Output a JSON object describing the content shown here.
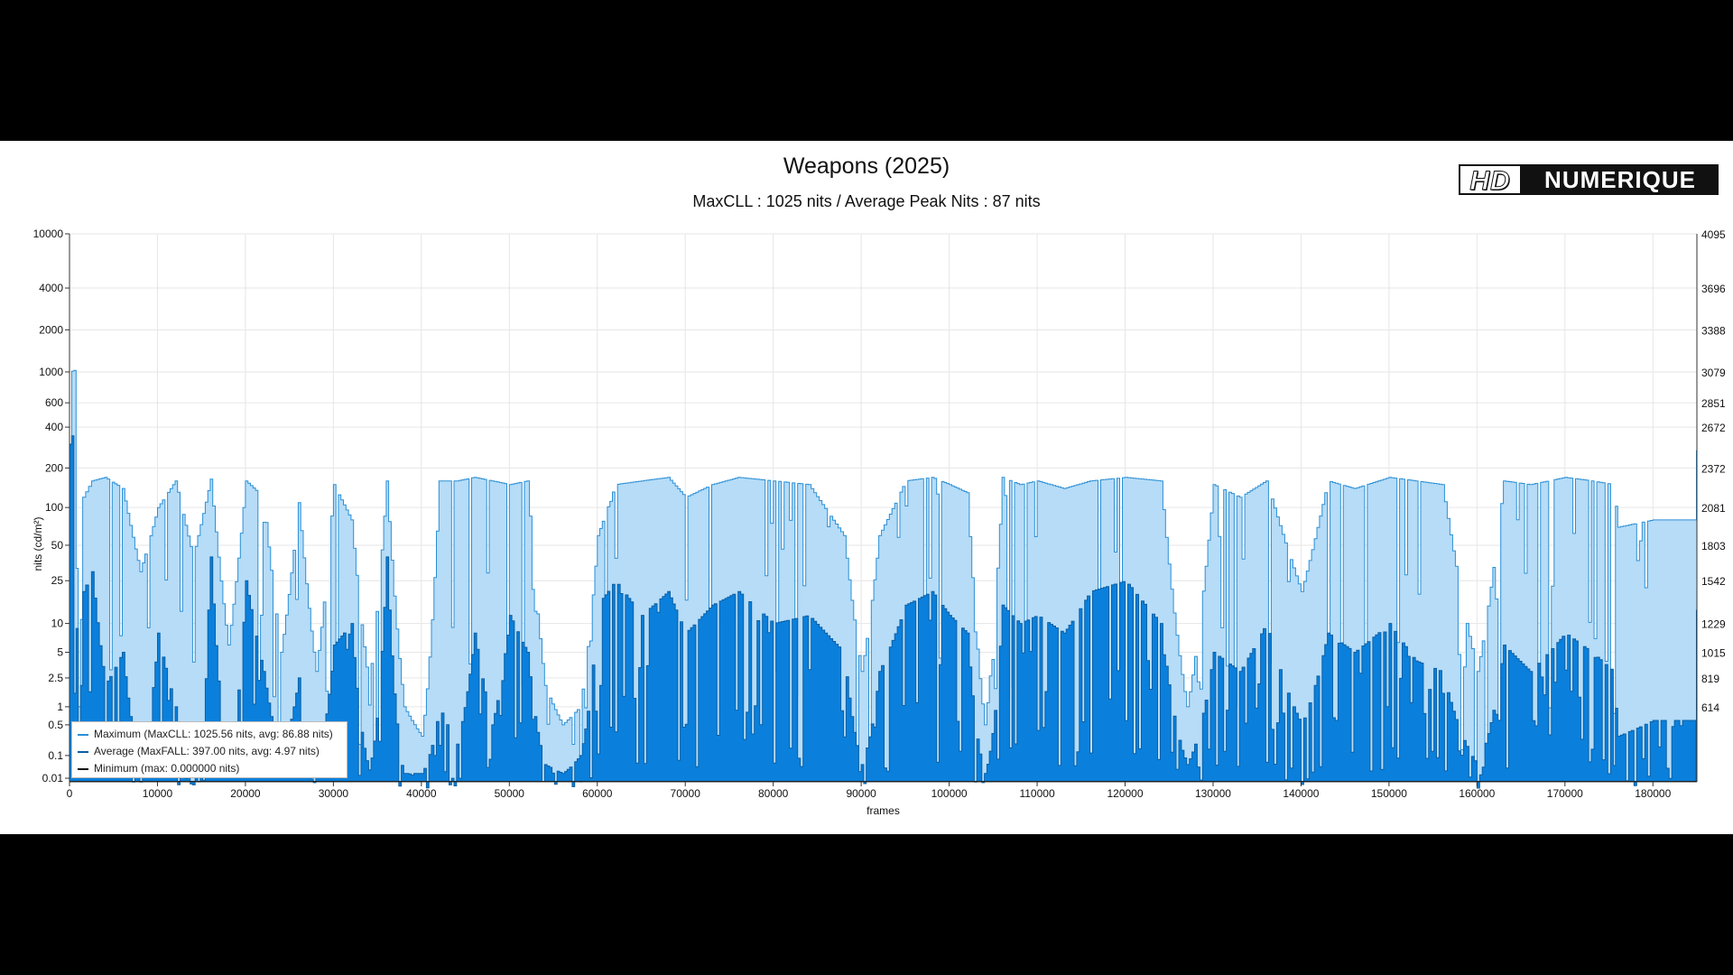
{
  "chart_data": {
    "type": "area",
    "title": "Weapons (2025)",
    "subtitle": "MaxCLL : 1025 nits / Average Peak Nits : 87 nits",
    "xlabel": "frames",
    "ylabel": "nits (cd/m²)",
    "xlim": [
      0,
      185000
    ],
    "ylim": [
      0.005,
      10000
    ],
    "yscale": "PQ",
    "x_ticks": [
      0,
      10000,
      20000,
      30000,
      40000,
      50000,
      60000,
      70000,
      80000,
      90000,
      100000,
      110000,
      120000,
      130000,
      140000,
      150000,
      160000,
      170000,
      180000
    ],
    "y_ticks": [
      {
        "nits": 0.01,
        "label": "0.01"
      },
      {
        "nits": 0.1,
        "label": "0.1"
      },
      {
        "nits": 0.5,
        "label": "0.5"
      },
      {
        "nits": 1,
        "label": "1"
      },
      {
        "nits": 2.5,
        "label": "2.5"
      },
      {
        "nits": 5,
        "label": "5"
      },
      {
        "nits": 10,
        "label": "10"
      },
      {
        "nits": 25,
        "label": "25"
      },
      {
        "nits": 50,
        "label": "50"
      },
      {
        "nits": 100,
        "label": "100"
      },
      {
        "nits": 200,
        "label": "200"
      },
      {
        "nits": 400,
        "label": "400"
      },
      {
        "nits": 600,
        "label": "600"
      },
      {
        "nits": 1000,
        "label": "1000"
      },
      {
        "nits": 2000,
        "label": "2000"
      },
      {
        "nits": 4000,
        "label": "4000"
      },
      {
        "nits": 10000,
        "label": "10000"
      }
    ],
    "y2_ticks": [
      {
        "nits": 1,
        "label": "614"
      },
      {
        "nits": 2.5,
        "label": "819"
      },
      {
        "nits": 5,
        "label": "1015"
      },
      {
        "nits": 10,
        "label": "1229"
      },
      {
        "nits": 25,
        "label": "1542"
      },
      {
        "nits": 50,
        "label": "1803"
      },
      {
        "nits": 100,
        "label": "2081"
      },
      {
        "nits": 200,
        "label": "2372"
      },
      {
        "nits": 400,
        "label": "2672"
      },
      {
        "nits": 600,
        "label": "2851"
      },
      {
        "nits": 1000,
        "label": "3079"
      },
      {
        "nits": 2000,
        "label": "3388"
      },
      {
        "nits": 4000,
        "label": "3696"
      },
      {
        "nits": 10000,
        "label": "4095"
      }
    ],
    "series": [
      {
        "name": "Maximum (MaxCLL: 1025.56 nits, avg: 86.88 nits)",
        "color": "#2b8fd6",
        "fill": "#b6dcf7",
        "x": [
          0,
          500,
          1000,
          1500,
          2500,
          4000,
          6000,
          8000,
          10000,
          12000,
          14000,
          16000,
          18000,
          20000,
          22000,
          24000,
          26000,
          28000,
          30000,
          32000,
          34000,
          36000,
          38000,
          40000,
          42000,
          44000,
          46000,
          48000,
          50000,
          52000,
          54000,
          56000,
          58000,
          60000,
          62000,
          65000,
          68000,
          70000,
          73000,
          76000,
          80000,
          84000,
          88000,
          90000,
          92000,
          95000,
          98000,
          100000,
          102000,
          104000,
          106000,
          108000,
          110000,
          113000,
          116000,
          120000,
          124000,
          127000,
          130000,
          133000,
          136000,
          140000,
          143000,
          146000,
          150000,
          153000,
          156000,
          160000,
          163000,
          166000,
          170000,
          173000,
          175500,
          176000,
          180000,
          184900,
          185000
        ],
        "values": [
          1000,
          1025,
          1,
          120,
          160,
          170,
          140,
          30,
          100,
          160,
          40,
          165,
          6,
          160,
          120,
          5,
          110,
          3,
          150,
          80,
          2,
          160,
          1,
          0.3,
          160,
          160,
          170,
          160,
          150,
          160,
          2,
          0.5,
          1,
          60,
          150,
          160,
          170,
          120,
          150,
          170,
          160,
          150,
          60,
          3,
          60,
          160,
          170,
          150,
          130,
          0.5,
          170,
          150,
          160,
          140,
          160,
          170,
          160,
          1,
          150,
          120,
          160,
          20,
          160,
          140,
          170,
          160,
          150,
          3,
          160,
          150,
          170,
          160,
          150,
          70,
          80,
          80,
          900
        ]
      },
      {
        "name": "Average (MaxFALL: 397.00 nits, avg: 4.97 nits)",
        "color": "#0b5fa5",
        "fill": "#0a80dc",
        "x": [
          0,
          500,
          1000,
          1500,
          2500,
          4000,
          6000,
          8000,
          10000,
          12000,
          14000,
          16000,
          18000,
          20000,
          22000,
          24000,
          26000,
          28000,
          30000,
          32000,
          34000,
          36000,
          38000,
          40000,
          42000,
          44000,
          46000,
          48000,
          50000,
          52000,
          54000,
          56000,
          58000,
          60000,
          62000,
          65000,
          68000,
          70000,
          73000,
          76000,
          80000,
          84000,
          88000,
          90000,
          92000,
          95000,
          98000,
          100000,
          102000,
          104000,
          106000,
          108000,
          110000,
          113000,
          116000,
          120000,
          124000,
          127000,
          130000,
          133000,
          136000,
          140000,
          143000,
          146000,
          150000,
          153000,
          156000,
          160000,
          163000,
          166000,
          170000,
          173000,
          175500,
          176000,
          180000,
          184900,
          185000
        ],
        "values": [
          300,
          397,
          0.2,
          20,
          30,
          2,
          5,
          0.05,
          8,
          1,
          0.02,
          40,
          0.05,
          25,
          3,
          0.1,
          2.5,
          0.05,
          6,
          10,
          0.03,
          40,
          0.02,
          0.02,
          1,
          0.2,
          8,
          0.5,
          12,
          5,
          0.05,
          0.02,
          0.1,
          15,
          25,
          12,
          20,
          8,
          15,
          20,
          10,
          12,
          5,
          0.05,
          3,
          15,
          20,
          12,
          8,
          0.02,
          15,
          10,
          12,
          8,
          20,
          25,
          10,
          0.05,
          5,
          3,
          10,
          0.5,
          8,
          5,
          10,
          4,
          3,
          0.05,
          6,
          3,
          8,
          5,
          3,
          0.3,
          0.6,
          0.6,
          300
        ]
      },
      {
        "name": "Minimum (max: 0.000000 nits)",
        "color": "#111111",
        "x": [
          0,
          185000
        ],
        "values": [
          0,
          0
        ]
      }
    ],
    "legend_position": "bottom-left"
  },
  "legend_items": [
    {
      "label": "Maximum (MaxCLL: 1025.56 nits, avg: 86.88 nits)",
      "color": "#2b8fd6"
    },
    {
      "label": "Average (MaxFALL: 397.00 nits, avg: 4.97 nits)",
      "color": "#0b5fa5"
    },
    {
      "label": "Minimum (max: 0.000000 nits)",
      "color": "#111111"
    }
  ],
  "logo": {
    "part1": "HD",
    "part2": "NUMERIQUE"
  }
}
